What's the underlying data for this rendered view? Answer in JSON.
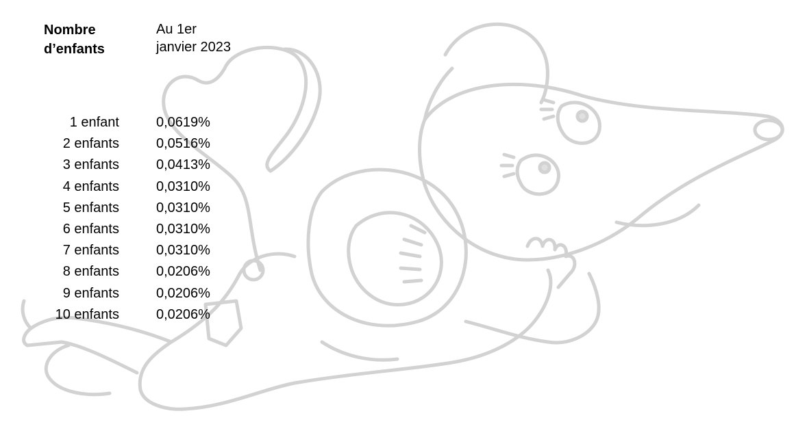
{
  "table": {
    "header_children": "Nombre d’enfants",
    "header_date": "Au 1er janvier 2023",
    "rows": [
      {
        "children": "1 enfant",
        "rate": "0,0619%"
      },
      {
        "children": "2 enfants",
        "rate": "0,0516%"
      },
      {
        "children": "3 enfants",
        "rate": "0,0413%"
      },
      {
        "children": "4 enfants",
        "rate": "0,0310%"
      },
      {
        "children": "5 enfants",
        "rate": "0,0310%"
      },
      {
        "children": "6 enfants",
        "rate": "0,0310%"
      },
      {
        "children": "7 enfants",
        "rate": "0,0310%"
      },
      {
        "children": "8 enfants",
        "rate": "0,0206%"
      },
      {
        "children": "9 enfants",
        "rate": "0,0206%"
      },
      {
        "children": "10 enfants",
        "rate": "0,0206%"
      }
    ]
  },
  "illustration": {
    "icon": "mouse-illustration",
    "stroke_color": "#d0d0d0"
  }
}
